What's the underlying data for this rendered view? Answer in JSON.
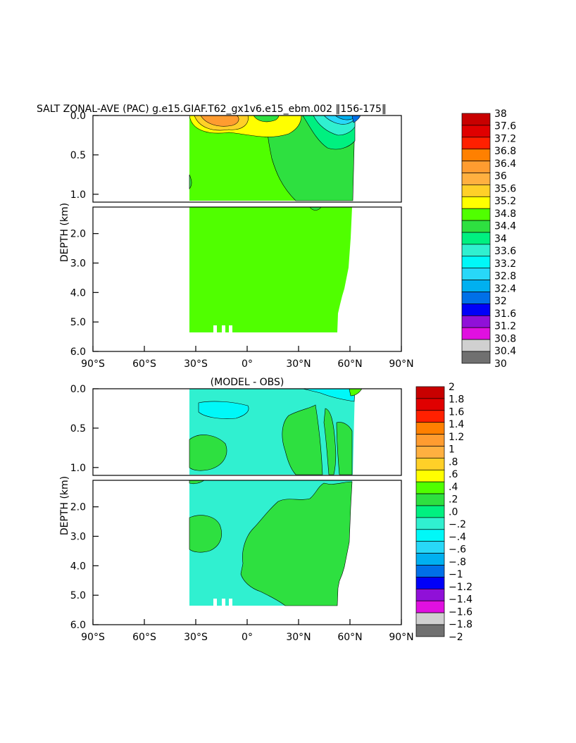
{
  "chart_data": [
    {
      "type": "heatmap",
      "title": "SALT ZONAL-AVE (PAC) g.e15.GIAF.T62_gx1v6.e15_ebm.002 ‖156-175‖",
      "subtitle": "",
      "xlabel": "",
      "ylabel": "DEPTH (km)",
      "x_ticks": [
        "90°S",
        "60°S",
        "30°S",
        "0°",
        "30°N",
        "60°N",
        "90°N"
      ],
      "x_range": [
        -90,
        90
      ],
      "y_ticks_upper": [
        "0.0",
        "0.5",
        "1.0"
      ],
      "y_range_upper": [
        0.0,
        1.1
      ],
      "y_ticks_lower": [
        "2.0",
        "3.0",
        "4.0",
        "5.0",
        "6.0"
      ],
      "y_range_lower": [
        1.1,
        6.0
      ],
      "colorbar_levels": [
        "38",
        "37.6",
        "37.2",
        "36.8",
        "36.4",
        "36",
        "35.6",
        "35.2",
        "34.8",
        "34.4",
        "34",
        "33.6",
        "33.2",
        "32.8",
        "32.4",
        "32",
        "31.6",
        "31.2",
        "30.8",
        "30.4",
        "30"
      ],
      "colorbar_colors": [
        "#c80000",
        "#e00000",
        "#ff2000",
        "#ff8000",
        "#ff9c30",
        "#ffb040",
        "#ffd028",
        "#ffff00",
        "#50ff00",
        "#2ee040",
        "#00f080",
        "#30f0d0",
        "#00f8f8",
        "#28d8f8",
        "#00b0f0",
        "#0070e8",
        "#0000f8",
        "#9010d8",
        "#e010e0",
        "#d0d0d0",
        "#707070"
      ],
      "data_extent": {
        "lat_min": -34,
        "lat_max_surface": 68,
        "depth_max": 5.35
      },
      "dominant_value_range": "34.4-34.8"
    },
    {
      "type": "heatmap",
      "title": "(MODEL - OBS)",
      "subtitle": "",
      "xlabel": "",
      "ylabel": "DEPTH (km)",
      "x_ticks": [
        "90°S",
        "60°S",
        "30°S",
        "0°",
        "30°N",
        "60°N",
        "90°N"
      ],
      "x_range": [
        -90,
        90
      ],
      "y_ticks_upper": [
        "0.0",
        "0.5",
        "1.0"
      ],
      "y_range_upper": [
        0.0,
        1.1
      ],
      "y_ticks_lower": [
        "2.0",
        "3.0",
        "4.0",
        "5.0",
        "6.0"
      ],
      "y_range_lower": [
        1.1,
        6.0
      ],
      "colorbar_levels": [
        "2",
        "1.8",
        "1.6",
        "1.4",
        "1.2",
        "1",
        ".8",
        ".6",
        ".4",
        ".2",
        ".0",
        "−.2",
        "−.4",
        "−.6",
        "−.8",
        "−1",
        "−1.2",
        "−1.4",
        "−1.6",
        "−1.8",
        "−2"
      ],
      "colorbar_colors": [
        "#c80000",
        "#e00000",
        "#ff2000",
        "#ff8000",
        "#ff9c30",
        "#ffb040",
        "#ffd028",
        "#ffff00",
        "#50ff00",
        "#2ee040",
        "#00f080",
        "#30f0d0",
        "#00f8f8",
        "#28d8f8",
        "#00b0f0",
        "#0070e8",
        "#0000f8",
        "#9010d8",
        "#e010e0",
        "#d0d0d0",
        "#707070"
      ],
      "data_extent": {
        "lat_min": -34,
        "lat_max_surface": 68,
        "depth_max": 5.35
      },
      "dominant_value_range": "-0.2-0.0"
    }
  ]
}
